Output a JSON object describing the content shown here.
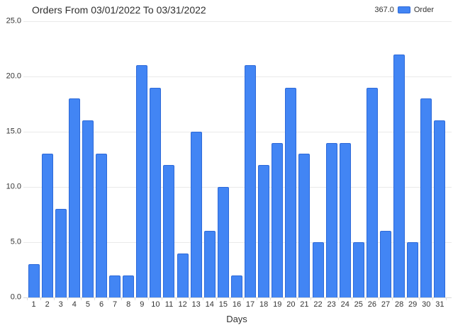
{
  "chart_data": {
    "type": "bar",
    "title": "Orders From 03/01/2022 To 03/31/2022",
    "xlabel": "Days",
    "ylabel": "",
    "categories": [
      "1",
      "2",
      "3",
      "4",
      "5",
      "6",
      "7",
      "8",
      "9",
      "10",
      "11",
      "12",
      "13",
      "14",
      "15",
      "16",
      "17",
      "18",
      "19",
      "20",
      "21",
      "22",
      "23",
      "24",
      "25",
      "26",
      "27",
      "28",
      "29",
      "30",
      "31"
    ],
    "values": [
      3,
      13,
      8,
      18,
      16,
      13,
      2,
      2,
      21,
      19,
      12,
      4,
      15,
      6,
      10,
      2,
      21,
      12,
      14,
      19,
      13,
      5,
      14,
      14,
      5,
      19,
      6,
      22,
      5,
      18,
      16
    ],
    "series_name": "Order",
    "ylim": [
      0,
      25
    ],
    "yticks": [
      0,
      5,
      10,
      15,
      20,
      25
    ],
    "ytick_labels": [
      "0.0",
      "5.0",
      "10.0",
      "15.0",
      "20.0",
      "25.0"
    ],
    "grid": "horizontal",
    "legend": {
      "position": "top-right",
      "total": "367.0",
      "series_label": "Order"
    },
    "colors": {
      "bar_fill": "#4285f4",
      "bar_border": "#2d69d8",
      "gridline": "#e9e9e9",
      "text": "#333333"
    }
  }
}
